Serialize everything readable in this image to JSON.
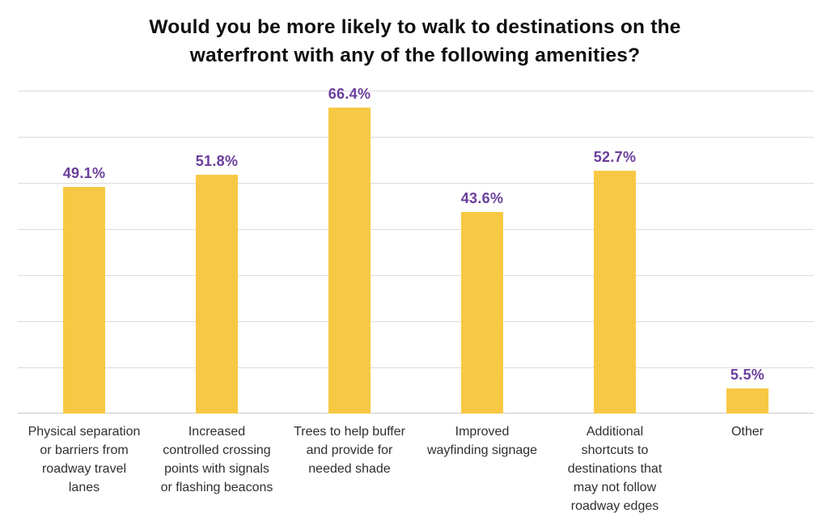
{
  "chart_data": {
    "type": "bar",
    "title": "Would you be more likely to walk to destinations on the waterfront with any of the following amenities?",
    "title_lines": [
      "Would you be more likely to walk to destinations on the",
      "waterfront with any of the following amenities?"
    ],
    "categories": [
      "Physical separation or barriers from roadway travel lanes",
      "Increased controlled crossing points with signals or flashing beacons",
      "Trees to help buffer and provide for needed shade",
      "Improved wayfinding signage",
      "Additional shortcuts to destinations that may not follow roadway edges",
      "Other"
    ],
    "category_lines": [
      [
        "Physical separation",
        "or barriers from",
        "roadway travel",
        "lanes"
      ],
      [
        "Increased",
        "controlled crossing",
        "points with signals",
        "or flashing beacons"
      ],
      [
        "Trees to help buffer",
        "and provide for",
        "needed shade"
      ],
      [
        "Improved",
        "wayfinding signage"
      ],
      [
        "Additional",
        "shortcuts to",
        "destinations that",
        "may not follow",
        "roadway edges"
      ],
      [
        "Other"
      ]
    ],
    "values": [
      49.1,
      51.8,
      66.4,
      43.6,
      52.7,
      5.5
    ],
    "value_labels": [
      "49.1%",
      "51.8%",
      "66.4%",
      "43.6%",
      "52.7%",
      "5.5%"
    ],
    "xlabel": "",
    "ylabel": "",
    "ylim": [
      0,
      70
    ],
    "gridline_step": 10,
    "grid": true,
    "legend": "none",
    "colors": {
      "bar": "#F7C843",
      "value_label": "#6A3E9B",
      "gridline": "#DBDBDB",
      "axis": "#C9C9C9",
      "title": "#0F0F0F",
      "category_label": "#2F2F2F"
    }
  }
}
